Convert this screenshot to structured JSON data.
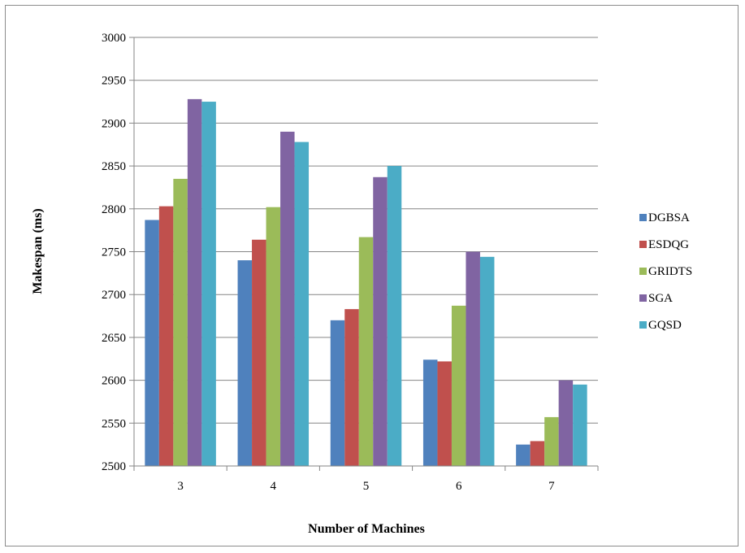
{
  "chart_data": {
    "type": "bar",
    "title": "",
    "xlabel": "Number of Machines",
    "ylabel": "Makespan (ms)",
    "categories": [
      "3",
      "4",
      "5",
      "6",
      "7"
    ],
    "ylim": [
      2500,
      3000
    ],
    "yticks": [
      2500,
      2550,
      2600,
      2650,
      2700,
      2750,
      2800,
      2850,
      2900,
      2950,
      3000
    ],
    "grid": true,
    "legend_position": "right",
    "series": [
      {
        "name": "DGBSA",
        "color": "#4f81bd",
        "values": [
          2787,
          2740,
          2670,
          2624,
          2525
        ]
      },
      {
        "name": "ESDQG",
        "color": "#c0504d",
        "values": [
          2803,
          2764,
          2683,
          2622,
          2529
        ]
      },
      {
        "name": "GRIDTS",
        "color": "#9bbb59",
        "values": [
          2835,
          2802,
          2767,
          2687,
          2557
        ]
      },
      {
        "name": "SGA",
        "color": "#8064a2",
        "values": [
          2928,
          2890,
          2837,
          2750,
          2600
        ]
      },
      {
        "name": "GQSD",
        "color": "#4bacc6",
        "values": [
          2925,
          2878,
          2850,
          2744,
          2595
        ]
      }
    ]
  }
}
